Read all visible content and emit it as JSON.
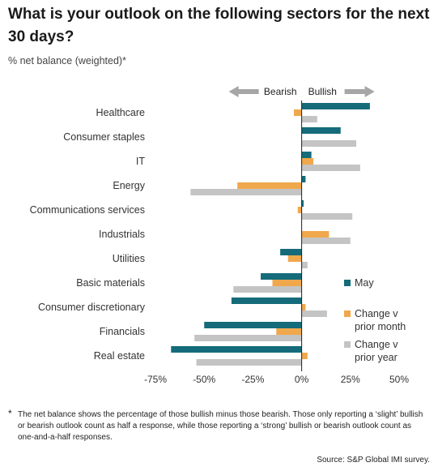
{
  "title": "What is your outlook on the following sectors for the next 30 days?",
  "subtitle": "% net balance (weighted)*",
  "footnote_marker": "*",
  "footnote": "The net balance shows the percentage of those bullish minus those bearish. Those only reporting a ‘slight’ bullish or bearish outlook count as half a response, while those reporting a ‘strong’ bullish or bearish outlook count as one-and-a-half responses.",
  "source": "Source: S&P Global IMI survey.",
  "colors": {
    "may": "#156b7a",
    "prior_month": "#f0a84c",
    "prior_year": "#c4c4c4",
    "arrow": "#a6a6a6"
  },
  "chart_data": {
    "type": "bar",
    "orientation": "horizontal",
    "direction_labels": {
      "negative": "Bearish",
      "positive": "Bullish"
    },
    "categories": [
      "Healthcare",
      "Consumer staples",
      "IT",
      "Energy",
      "Communications services",
      "Industrials",
      "Utilities",
      "Basic materials",
      "Consumer discretionary",
      "Financials",
      "Real estate"
    ],
    "series": [
      {
        "name": "May",
        "values": [
          35,
          20,
          5,
          2,
          1,
          0,
          -11,
          -21,
          -36,
          -50,
          -67
        ]
      },
      {
        "name": "Change v prior month",
        "values": [
          -4,
          0,
          6,
          -33,
          -2,
          14,
          -7,
          -15,
          2,
          -13,
          3
        ]
      },
      {
        "name": "Change v prior year",
        "values": [
          8,
          28,
          30,
          -57,
          26,
          25,
          3,
          -35,
          13,
          -55,
          -54
        ]
      }
    ],
    "xlim": [
      -75,
      50
    ],
    "xticks": [
      -75,
      -50,
      -25,
      0,
      25,
      50
    ],
    "xtick_labels": [
      "-75%",
      "-50%",
      "-25%",
      "0%",
      "25%",
      "50%"
    ],
    "legend_position": "right"
  }
}
